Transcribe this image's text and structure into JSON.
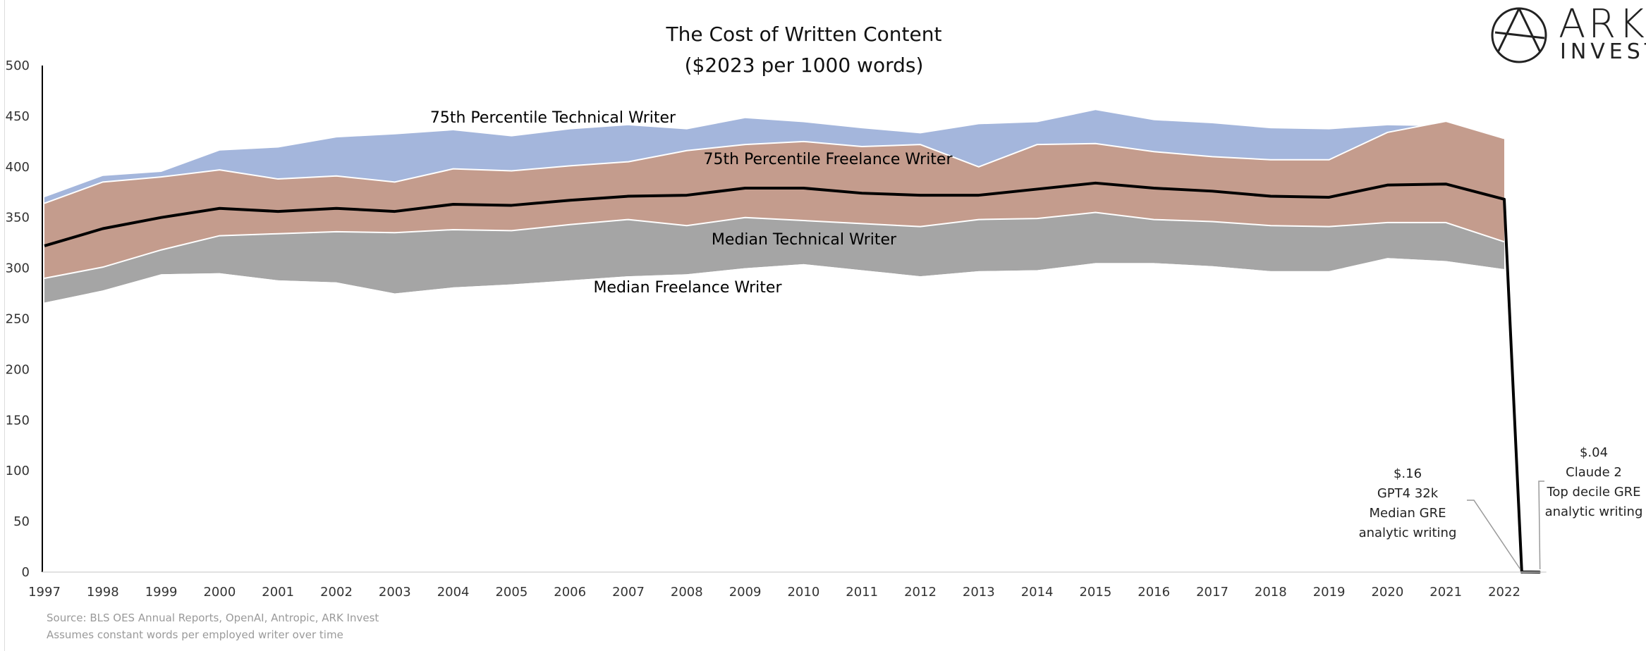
{
  "chart_data": {
    "type": "area",
    "title": "The Cost of Written Content",
    "subtitle": "($2023 per 1000 words)",
    "xlabel": "",
    "ylabel": "",
    "ylim": [
      0,
      500
    ],
    "yticks": [
      "0",
      "50",
      "100",
      "150",
      "200",
      "250",
      "300",
      "350",
      "400",
      "450",
      "500"
    ],
    "x": [
      "1997",
      "1998",
      "1999",
      "2000",
      "2001",
      "2002",
      "2003",
      "2004",
      "2005",
      "2006",
      "2007",
      "2008",
      "2009",
      "2010",
      "2011",
      "2012",
      "2013",
      "2014",
      "2015",
      "2016",
      "2017",
      "2018",
      "2019",
      "2020",
      "2021",
      "2022"
    ],
    "grid": false,
    "series": [
      {
        "name": "75th Percentile Technical Writer",
        "color": "#a4b6dc",
        "values": [
          370,
          391,
          395,
          416,
          419,
          429,
          432,
          436,
          430,
          437,
          441,
          437,
          448,
          444,
          438,
          433,
          442,
          444,
          456,
          446,
          443,
          438,
          437,
          441,
          440,
          422
        ]
      },
      {
        "name": "75th Percentile Freelance Writer",
        "color": "#c49c8d",
        "values": [
          364,
          385,
          390,
          397,
          388,
          391,
          385,
          398,
          396,
          401,
          405,
          416,
          422,
          425,
          420,
          422,
          400,
          422,
          423,
          415,
          410,
          407,
          407,
          434,
          445,
          428
        ]
      },
      {
        "name": "Median Technical Writer",
        "color": "#a5a5a5",
        "values": [
          290,
          301,
          318,
          332,
          334,
          336,
          335,
          338,
          337,
          343,
          348,
          342,
          350,
          347,
          344,
          341,
          348,
          349,
          355,
          348,
          346,
          342,
          341,
          345,
          345,
          326
        ]
      },
      {
        "name": "Median Freelance Writer",
        "color": "#a5a5a5",
        "values": [
          266,
          278,
          294,
          295,
          288,
          286,
          275,
          281,
          284,
          288,
          292,
          294,
          300,
          304,
          298,
          292,
          297,
          298,
          305,
          305,
          302,
          297,
          297,
          310,
          307,
          299
        ]
      },
      {
        "name": "",
        "color": "#000000",
        "values": [
          322,
          339,
          350,
          359,
          356,
          359,
          356,
          363,
          362,
          367,
          371,
          372,
          379,
          379,
          374,
          372,
          372,
          378,
          384,
          379,
          376,
          371,
          370,
          382,
          383,
          368
        ]
      }
    ],
    "drop_points": [
      {
        "x": "2022.3",
        "value": 0.16
      },
      {
        "x": "2022.6",
        "value": 0.04
      }
    ],
    "annotations": [
      {
        "lines": [
          "$.16",
          "GPT4 32k",
          "Median GRE",
          "analytic writing"
        ]
      },
      {
        "lines": [
          "$.04",
          "Claude 2",
          "Top decile GRE",
          "analytic writing"
        ]
      }
    ],
    "source": "Source: BLS OES Annual Reports, OpenAI, Antropic, ARK Invest",
    "note": "Assumes constant words per employed writer over time",
    "logo": {
      "line1": "ARK",
      "line2": "INVEST"
    }
  }
}
